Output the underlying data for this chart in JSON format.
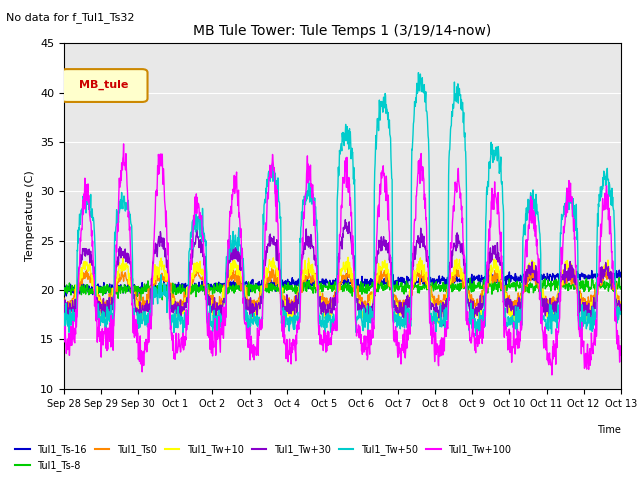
{
  "title": "MB Tule Tower: Tule Temps 1 (3/19/14-now)",
  "subtitle": "No data for f_Tul1_Ts32",
  "ylabel": "Temperature (C)",
  "xlabel": "Time",
  "ylim": [
    10,
    45
  ],
  "background_color": "#ffffff",
  "plot_bg_color": "#e8e8e8",
  "legend_box_color": "#ffffcc",
  "legend_box_edge": "#cc8800",
  "legend_label": "MB_tule",
  "legend_label_color": "#cc0000",
  "series_colors": {
    "Tul1_Ts-16": "#0000cc",
    "Tul1_Ts-8": "#00cc00",
    "Tul1_Ts0": "#ff8800",
    "Tul1_Tw+10": "#ffff00",
    "Tul1_Tw+30": "#8800cc",
    "Tul1_Tw+50": "#00cccc",
    "Tul1_Tw+100": "#ff00ff"
  },
  "xtick_labels": [
    "Sep 28",
    "Sep 29",
    "Sep 30",
    "Oct 1",
    "Oct 2",
    "Oct 3",
    "Oct 4",
    "Oct 5",
    "Oct 6",
    "Oct 7",
    "Oct 8",
    "Oct 9",
    "Oct 10",
    "Oct 11",
    "Oct 12",
    "Oct 13"
  ],
  "ytick_labels": [
    10,
    15,
    20,
    25,
    30,
    35,
    40,
    45
  ],
  "num_days": 15,
  "points_per_day": 96,
  "figsize": [
    6.4,
    4.8
  ],
  "dpi": 100
}
